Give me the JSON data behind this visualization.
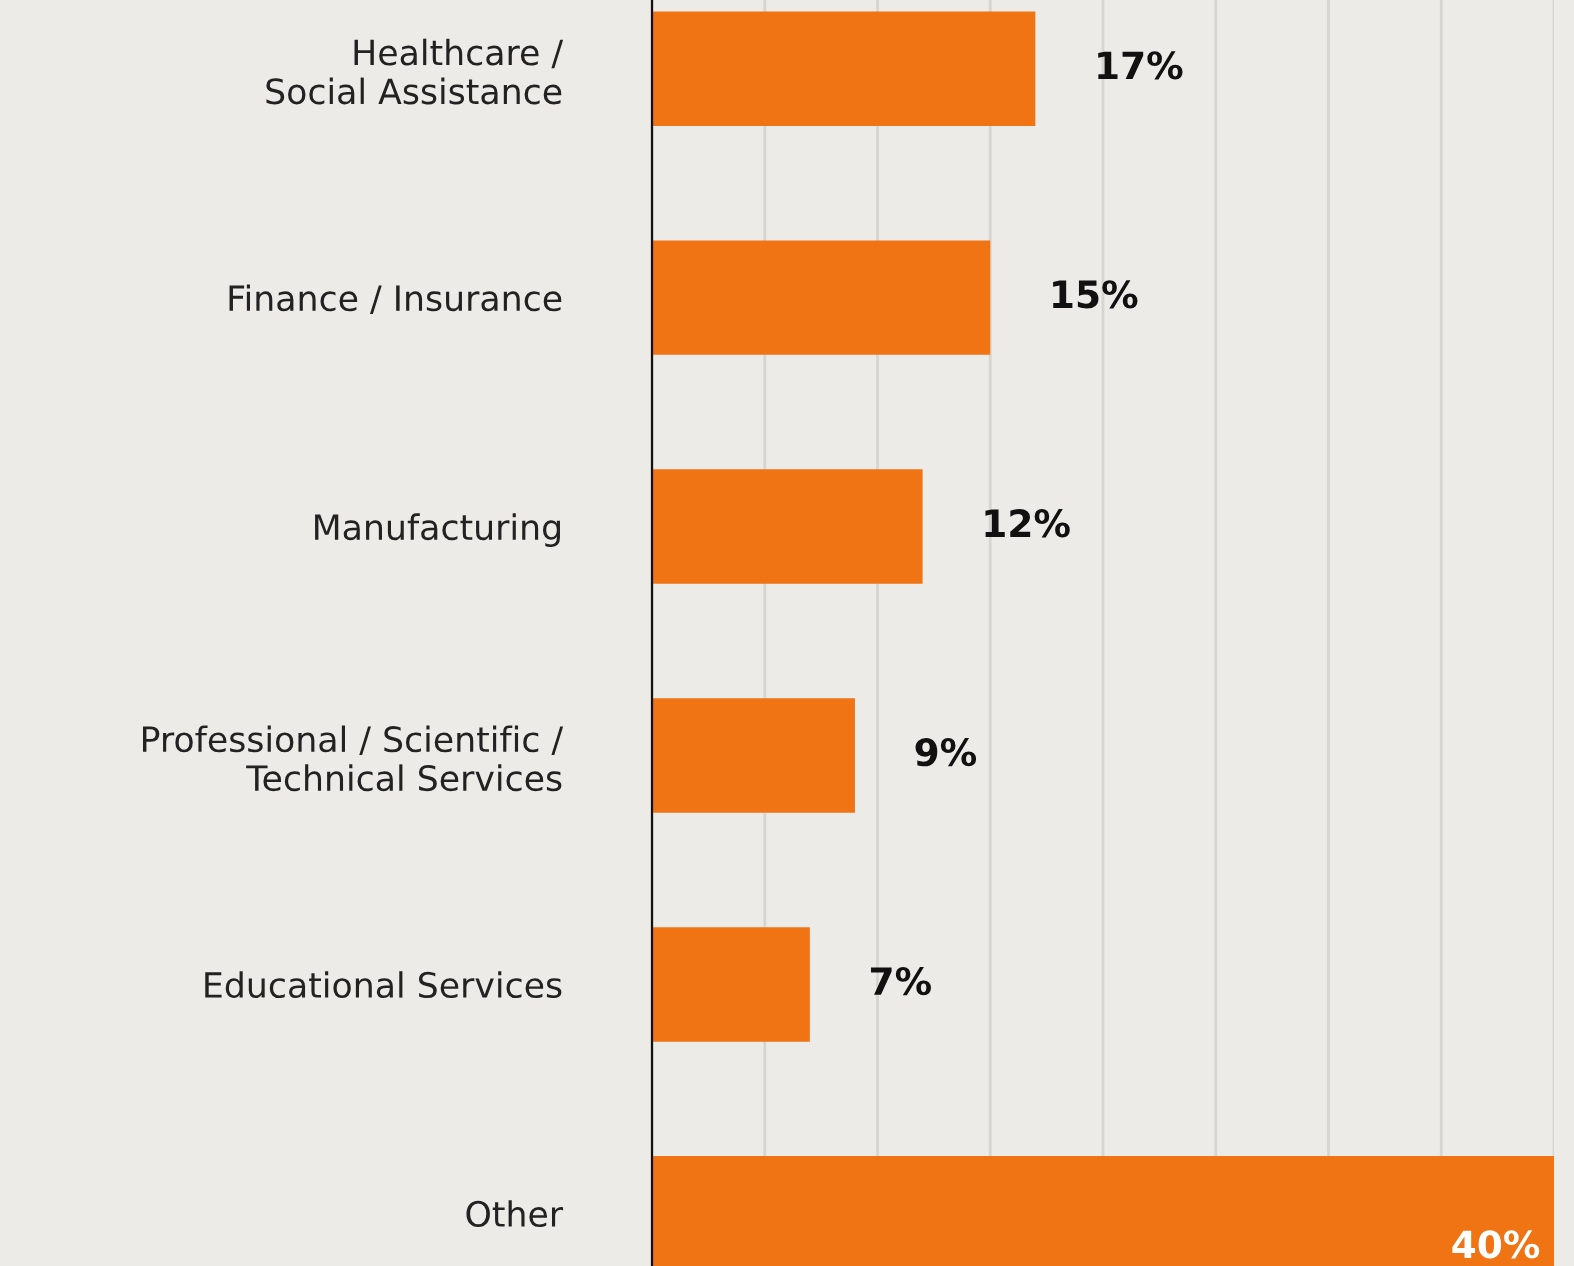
{
  "chart_data": {
    "type": "bar",
    "orientation": "horizontal",
    "categories": [
      "Healthcare /\nSocial Assistance",
      "Finance / Insurance",
      "Manufacturing",
      "Professional / Scientific /\nTechnical Services",
      "Educational Services",
      "Other"
    ],
    "values": [
      17,
      15,
      12,
      9,
      7,
      40
    ],
    "value_labels": [
      "17%",
      "15%",
      "12%",
      "9%",
      "7%",
      "40%"
    ],
    "color": "#f07314",
    "xlim": [
      0,
      40
    ],
    "xticks": [
      {
        "value": 0,
        "label": null
      },
      {
        "value": 5,
        "label": null
      },
      {
        "value": 10,
        "label": null
      },
      {
        "value": 15,
        "label": null
      },
      {
        "value": 20,
        "label": null
      },
      {
        "value": 25,
        "label": null
      },
      {
        "value": 30,
        "label": null
      },
      {
        "value": 35,
        "label": null
      },
      {
        "value": 40,
        "label": null
      }
    ],
    "grid": "x",
    "legend": false
  }
}
